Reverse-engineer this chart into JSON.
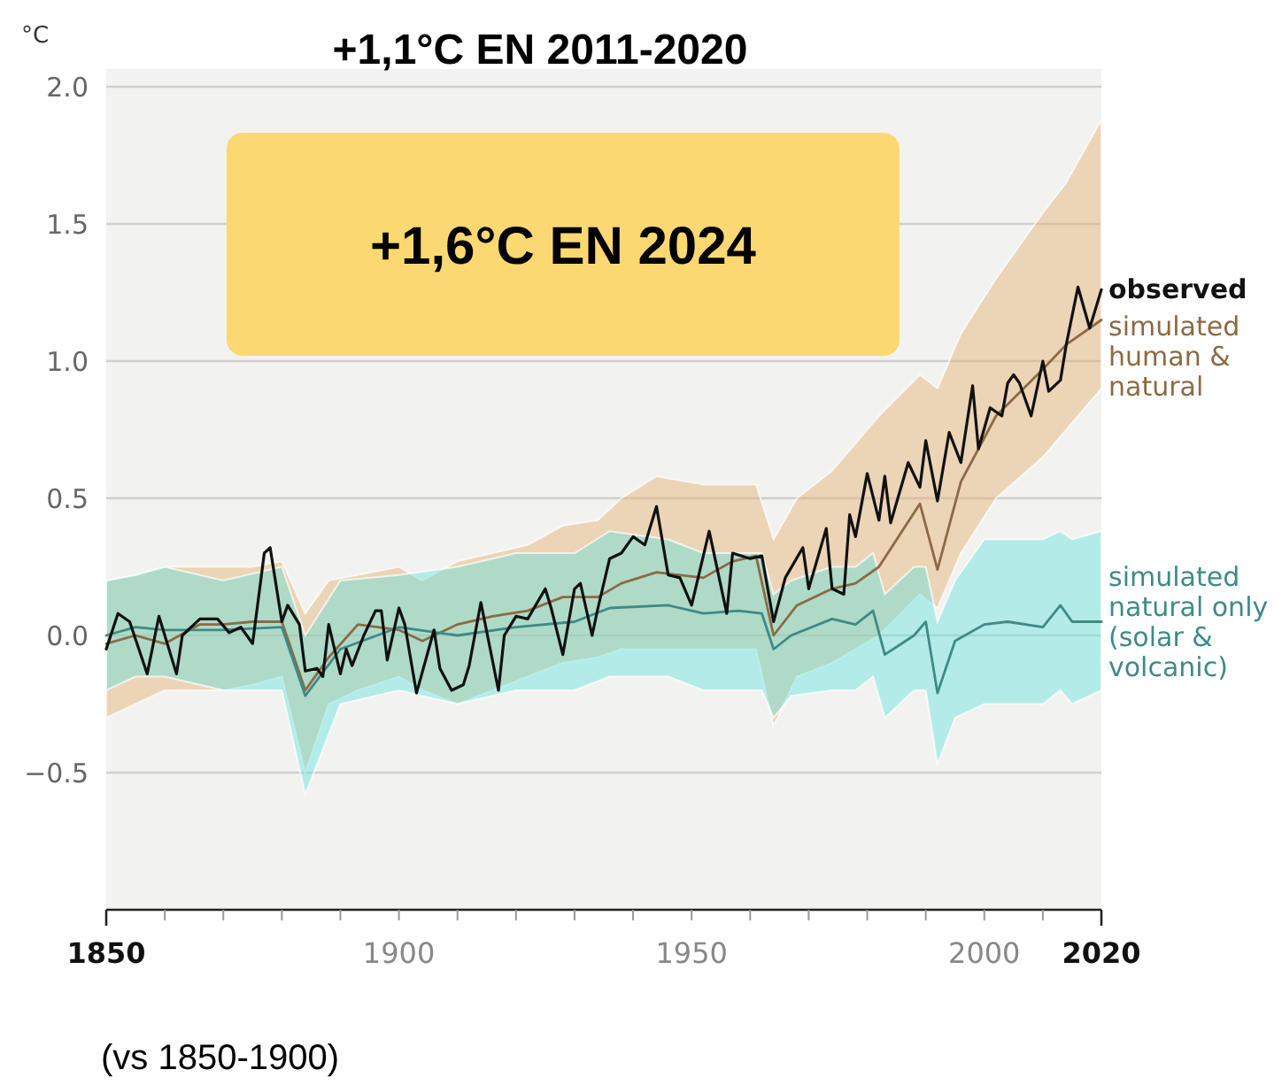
{
  "chart_data": {
    "type": "line",
    "title": "+1,1°C EN 2011-2020",
    "ylabel": "°C",
    "annotations": [
      "+1,6°C EN 2024",
      "(vs 1850-1900)"
    ],
    "xlim": [
      1850,
      2020
    ],
    "ylim": [
      -1,
      2
    ],
    "xticks": [
      1850,
      {
        "value": 1860,
        "label": null
      },
      {
        "value": 1870,
        "label": null
      },
      {
        "value": 1880,
        "label": null
      },
      {
        "value": 1890,
        "label": null
      },
      1900,
      {
        "value": 1910,
        "label": null
      },
      {
        "value": 1920,
        "label": null
      },
      {
        "value": 1930,
        "label": null
      },
      {
        "value": 1940,
        "label": null
      },
      1950,
      {
        "value": 1960,
        "label": null
      },
      {
        "value": 1970,
        "label": null
      },
      {
        "value": 1980,
        "label": null
      },
      {
        "value": 1990,
        "label": null
      },
      2000,
      {
        "value": 2010,
        "label": null
      },
      2020
    ],
    "yticks": [
      {
        "value": -0.5,
        "label": "−0.5"
      },
      {
        "value": 0,
        "label": "0.0"
      },
      {
        "value": 0.5,
        "label": "0.5"
      },
      {
        "value": 1,
        "label": "1.0"
      },
      {
        "value": 1.5,
        "label": "1.5"
      },
      {
        "value": 2,
        "label": "2.0"
      }
    ],
    "grid": "y",
    "line_style": "solid",
    "marker": "none",
    "series": [
      {
        "name": "simulated human & natural",
        "color": "#8b6a45",
        "x": [
          1850,
          1855,
          1860,
          1866,
          1870,
          1875,
          1880,
          1884,
          1888,
          1893,
          1900,
          1904,
          1910,
          1916,
          1922,
          1928,
          1934,
          1938,
          1944,
          1952,
          1957,
          1961,
          1964,
          1968,
          1974,
          1978,
          1982,
          1989,
          1992,
          1996,
          2002,
          2010,
          2014,
          2020
        ],
        "values": [
          -0.03,
          0.0,
          -0.03,
          0.04,
          0.04,
          0.05,
          0.05,
          -0.2,
          -0.08,
          0.04,
          0.02,
          -0.02,
          0.04,
          0.07,
          0.09,
          0.14,
          0.14,
          0.19,
          0.23,
          0.21,
          0.27,
          0.29,
          0.0,
          0.11,
          0.17,
          0.19,
          0.25,
          0.48,
          0.24,
          0.56,
          0.8,
          0.97,
          1.06,
          1.15
        ],
        "upper": [
          0.2,
          0.22,
          0.25,
          0.25,
          0.25,
          0.25,
          0.27,
          0.08,
          0.2,
          0.22,
          0.25,
          0.2,
          0.27,
          0.3,
          0.33,
          0.4,
          0.42,
          0.5,
          0.58,
          0.55,
          0.55,
          0.55,
          0.35,
          0.5,
          0.6,
          0.7,
          0.8,
          0.95,
          0.9,
          1.1,
          1.3,
          1.54,
          1.65,
          1.88
        ],
        "lower": [
          -0.3,
          -0.25,
          -0.2,
          -0.2,
          -0.2,
          -0.18,
          -0.15,
          -0.5,
          -0.25,
          -0.2,
          -0.15,
          -0.2,
          -0.25,
          -0.2,
          -0.15,
          -0.1,
          -0.08,
          -0.05,
          -0.05,
          -0.05,
          -0.05,
          -0.05,
          -0.33,
          -0.15,
          -0.1,
          -0.05,
          0.0,
          0.15,
          0.1,
          0.3,
          0.5,
          0.65,
          0.75,
          0.9
        ]
      },
      {
        "name": "simulated natural only (solar & volcanic)",
        "color": "#3e8a86",
        "x": [
          1850,
          1855,
          1860,
          1870,
          1880,
          1884,
          1890,
          1900,
          1910,
          1920,
          1930,
          1936,
          1946,
          1952,
          1958,
          1962,
          1964,
          1967,
          1974,
          1978,
          1981,
          1983,
          1988,
          1990,
          1992,
          1995,
          2000,
          2004,
          2010,
          2013,
          2015,
          2020
        ],
        "values": [
          0.0,
          0.03,
          0.02,
          0.02,
          0.03,
          -0.22,
          -0.05,
          0.03,
          0.0,
          0.03,
          0.05,
          0.1,
          0.11,
          0.08,
          0.09,
          0.08,
          -0.05,
          0.0,
          0.06,
          0.04,
          0.09,
          -0.07,
          0.0,
          0.05,
          -0.21,
          -0.02,
          0.04,
          0.05,
          0.03,
          0.11,
          0.05,
          0.05
        ],
        "upper": [
          0.2,
          0.22,
          0.25,
          0.2,
          0.25,
          0.0,
          0.2,
          0.22,
          0.25,
          0.3,
          0.3,
          0.38,
          0.35,
          0.3,
          0.3,
          0.3,
          0.15,
          0.2,
          0.25,
          0.25,
          0.3,
          0.15,
          0.25,
          0.25,
          0.05,
          0.2,
          0.35,
          0.35,
          0.35,
          0.38,
          0.35,
          0.38
        ],
        "lower": [
          -0.2,
          -0.15,
          -0.15,
          -0.2,
          -0.2,
          -0.58,
          -0.25,
          -0.2,
          -0.25,
          -0.2,
          -0.2,
          -0.15,
          -0.15,
          -0.2,
          -0.2,
          -0.2,
          -0.3,
          -0.22,
          -0.2,
          -0.2,
          -0.15,
          -0.3,
          -0.2,
          -0.2,
          -0.47,
          -0.3,
          -0.25,
          -0.25,
          -0.25,
          -0.2,
          -0.25,
          -0.2
        ]
      },
      {
        "name": "observed",
        "color": "#111111",
        "x": [
          1850,
          1852,
          1854,
          1857,
          1859,
          1862,
          1863,
          1866,
          1869,
          1871,
          1873,
          1875,
          1877,
          1878,
          1880,
          1881,
          1883,
          1884,
          1886,
          1887,
          1888,
          1890,
          1891,
          1892,
          1894,
          1896,
          1897,
          1898,
          1900,
          1901,
          1903,
          1906,
          1907,
          1909,
          1911,
          1912,
          1914,
          1917,
          1918,
          1920,
          1922,
          1925,
          1926,
          1928,
          1930,
          1931,
          1933,
          1934,
          1936,
          1938,
          1940,
          1942,
          1944,
          1946,
          1948,
          1950,
          1953,
          1956,
          1957,
          1960,
          1962,
          1964,
          1966,
          1969,
          1970,
          1973,
          1974,
          1976,
          1977,
          1978,
          1980,
          1982,
          1983,
          1984,
          1987,
          1989,
          1990,
          1992,
          1994,
          1996,
          1998,
          1999,
          2001,
          2003,
          2004,
          2005,
          2006,
          2008,
          2010,
          2011,
          2013,
          2014,
          2016,
          2018,
          2020
        ],
        "values": [
          -0.05,
          0.08,
          0.05,
          -0.14,
          0.07,
          -0.14,
          0.0,
          0.06,
          0.06,
          0.01,
          0.03,
          -0.03,
          0.3,
          0.32,
          0.05,
          0.11,
          0.04,
          -0.13,
          -0.12,
          -0.15,
          0.04,
          -0.14,
          -0.05,
          -0.11,
          0.0,
          0.09,
          0.09,
          -0.09,
          0.1,
          0.04,
          -0.21,
          0.02,
          -0.12,
          -0.2,
          -0.18,
          -0.11,
          0.12,
          -0.2,
          0.0,
          0.07,
          0.06,
          0.17,
          0.1,
          -0.07,
          0.17,
          0.19,
          0.0,
          0.1,
          0.28,
          0.3,
          0.36,
          0.33,
          0.47,
          0.22,
          0.21,
          0.11,
          0.38,
          0.08,
          0.3,
          0.28,
          0.29,
          0.05,
          0.21,
          0.32,
          0.17,
          0.39,
          0.17,
          0.15,
          0.44,
          0.36,
          0.59,
          0.42,
          0.58,
          0.41,
          0.63,
          0.54,
          0.71,
          0.49,
          0.74,
          0.63,
          0.91,
          0.68,
          0.83,
          0.8,
          0.92,
          0.95,
          0.92,
          0.8,
          1.0,
          0.89,
          0.93,
          1.06,
          1.27,
          1.12,
          1.26
        ]
      }
    ]
  }
}
